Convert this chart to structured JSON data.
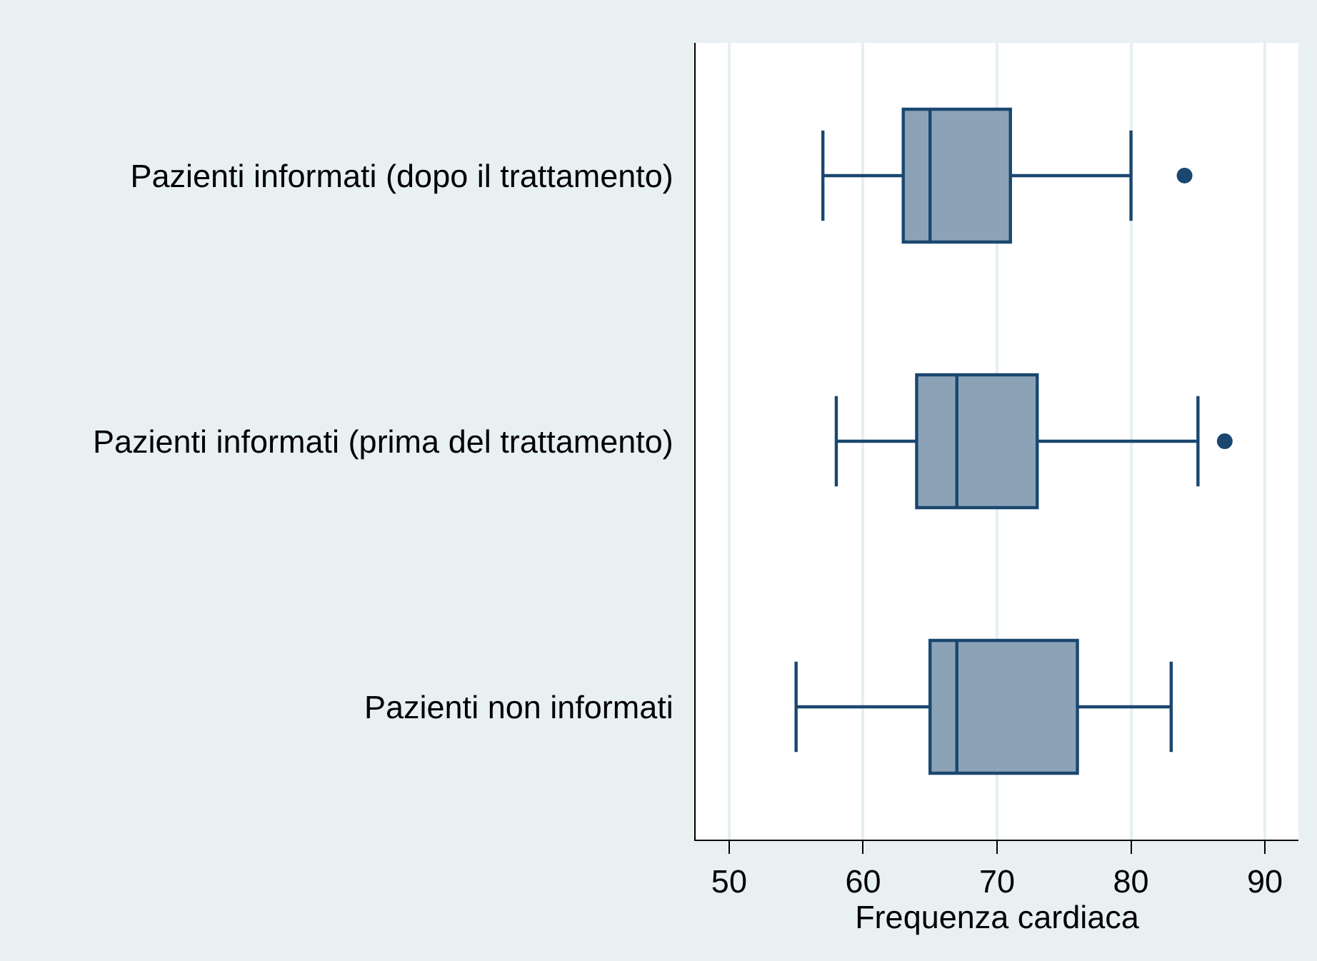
{
  "chart_data": {
    "type": "box",
    "orientation": "horizontal",
    "categories": [
      "Pazienti informati (dopo il trattamento)",
      "Pazienti informati (prima del trattamento)",
      "Pazienti non informati"
    ],
    "boxes": [
      {
        "low": 57,
        "q1": 63,
        "median": 65,
        "q3": 71,
        "high": 80,
        "outliers": [
          84
        ]
      },
      {
        "low": 58,
        "q1": 64,
        "median": 67,
        "q3": 73,
        "high": 85,
        "outliers": [
          87
        ]
      },
      {
        "low": 55,
        "q1": 65,
        "median": 67,
        "q3": 76,
        "high": 83
      }
    ],
    "color": "#1a476f",
    "marker": "circle",
    "xlabel": "Frequenza cardiaca",
    "xlim": [
      47.5,
      92.5
    ],
    "xticks": [
      50,
      60,
      70,
      80,
      90
    ],
    "grid": "x"
  }
}
